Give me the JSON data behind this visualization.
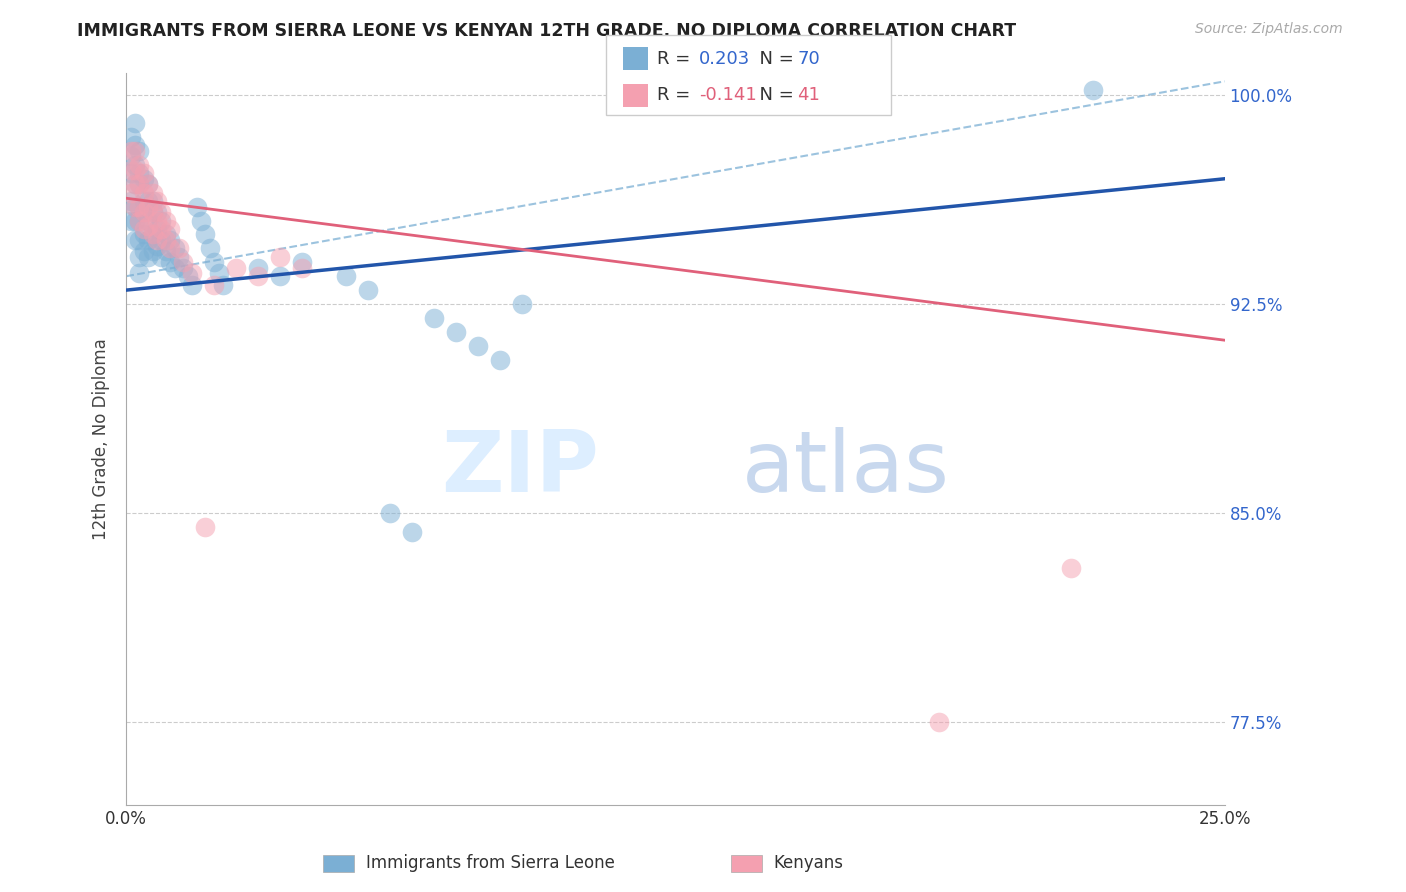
{
  "title": "IMMIGRANTS FROM SIERRA LEONE VS KENYAN 12TH GRADE, NO DIPLOMA CORRELATION CHART",
  "source": "Source: ZipAtlas.com",
  "ylabel": "12th Grade, No Diploma",
  "x_min": 0.0,
  "x_max": 0.25,
  "y_min": 0.745,
  "y_max": 1.008,
  "y_ticks": [
    0.775,
    0.85,
    0.925,
    1.0
  ],
  "y_tick_labels_right": [
    "77.5%",
    "85.0%",
    "92.5%",
    "100.0%"
  ],
  "legend_label1": "Immigrants from Sierra Leone",
  "legend_label2": "Kenyans",
  "R1": 0.203,
  "N1": 70,
  "R2": -0.141,
  "N2": 41,
  "color_blue": "#7BAFD4",
  "color_pink": "#F4A0B0",
  "color_blue_line": "#2255AA",
  "color_pink_line": "#E0607A",
  "color_dashed": "#7BAFD4",
  "watermark_zip": "ZIP",
  "watermark_atlas": "atlas",
  "blue_line_x0": 0.0,
  "blue_line_y0": 0.93,
  "blue_line_x1": 0.25,
  "blue_line_y1": 0.97,
  "pink_line_x0": 0.0,
  "pink_line_y0": 0.963,
  "pink_line_x1": 0.25,
  "pink_line_y1": 0.912,
  "dash_line_x0": 0.0,
  "dash_line_y0": 0.935,
  "dash_line_x1": 0.25,
  "dash_line_y1": 1.005,
  "blue_x": [
    0.001,
    0.001,
    0.001,
    0.001,
    0.001,
    0.002,
    0.002,
    0.002,
    0.002,
    0.002,
    0.002,
    0.002,
    0.003,
    0.003,
    0.003,
    0.003,
    0.003,
    0.003,
    0.003,
    0.003,
    0.004,
    0.004,
    0.004,
    0.004,
    0.004,
    0.005,
    0.005,
    0.005,
    0.005,
    0.005,
    0.006,
    0.006,
    0.006,
    0.006,
    0.007,
    0.007,
    0.007,
    0.008,
    0.008,
    0.008,
    0.009,
    0.009,
    0.01,
    0.01,
    0.011,
    0.011,
    0.012,
    0.013,
    0.014,
    0.015,
    0.016,
    0.017,
    0.018,
    0.019,
    0.02,
    0.021,
    0.022,
    0.03,
    0.035,
    0.04,
    0.05,
    0.055,
    0.06,
    0.065,
    0.07,
    0.075,
    0.08,
    0.085,
    0.09,
    0.22
  ],
  "blue_y": [
    0.985,
    0.978,
    0.972,
    0.962,
    0.955,
    0.99,
    0.982,
    0.975,
    0.968,
    0.96,
    0.955,
    0.948,
    0.98,
    0.972,
    0.968,
    0.96,
    0.955,
    0.948,
    0.942,
    0.936,
    0.97,
    0.962,
    0.958,
    0.95,
    0.944,
    0.968,
    0.962,
    0.955,
    0.948,
    0.942,
    0.962,
    0.958,
    0.95,
    0.944,
    0.958,
    0.952,
    0.946,
    0.955,
    0.948,
    0.942,
    0.95,
    0.944,
    0.948,
    0.94,
    0.945,
    0.938,
    0.942,
    0.938,
    0.935,
    0.932,
    0.96,
    0.955,
    0.95,
    0.945,
    0.94,
    0.936,
    0.932,
    0.938,
    0.935,
    0.94,
    0.935,
    0.93,
    0.85,
    0.843,
    0.92,
    0.915,
    0.91,
    0.905,
    0.925,
    1.002
  ],
  "pink_x": [
    0.001,
    0.001,
    0.001,
    0.002,
    0.002,
    0.002,
    0.002,
    0.003,
    0.003,
    0.003,
    0.003,
    0.004,
    0.004,
    0.004,
    0.004,
    0.005,
    0.005,
    0.005,
    0.006,
    0.006,
    0.006,
    0.007,
    0.007,
    0.007,
    0.008,
    0.008,
    0.009,
    0.009,
    0.01,
    0.01,
    0.012,
    0.013,
    0.015,
    0.018,
    0.02,
    0.025,
    0.03,
    0.035,
    0.04,
    0.185,
    0.215
  ],
  "pink_y": [
    0.98,
    0.973,
    0.965,
    0.98,
    0.973,
    0.968,
    0.96,
    0.975,
    0.968,
    0.96,
    0.955,
    0.972,
    0.965,
    0.958,
    0.952,
    0.968,
    0.96,
    0.953,
    0.965,
    0.958,
    0.95,
    0.962,
    0.955,
    0.948,
    0.958,
    0.952,
    0.955,
    0.948,
    0.952,
    0.945,
    0.945,
    0.94,
    0.936,
    0.845,
    0.932,
    0.938,
    0.935,
    0.942,
    0.938,
    0.775,
    0.83
  ]
}
